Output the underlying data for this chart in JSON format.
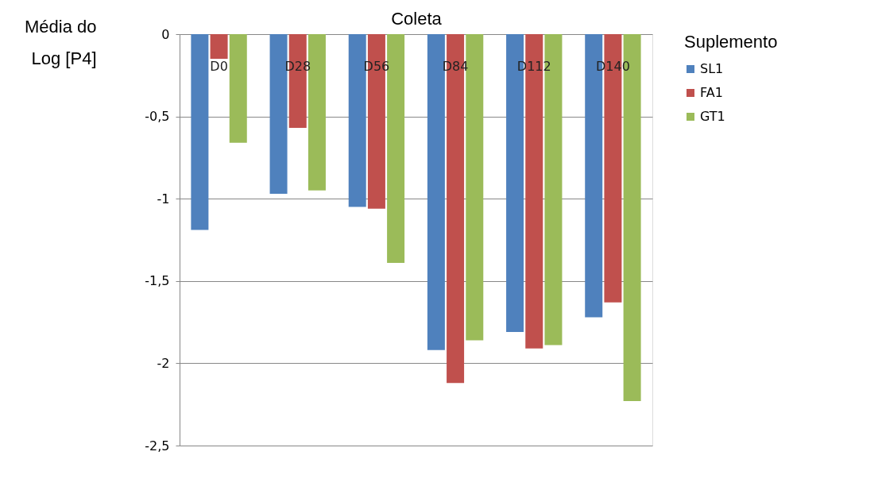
{
  "chart_data": {
    "type": "bar",
    "xlabel": "Coleta",
    "ylabel": "Média do\nLog [P4]",
    "legend_title": "Suplemento",
    "categories": [
      "D0",
      "D28",
      "D56",
      "D84",
      "D112",
      "D140"
    ],
    "series": [
      {
        "name": "SL1",
        "color": "#4f81bd",
        "values": [
          -1.19,
          -0.97,
          -1.05,
          -1.92,
          -1.81,
          -1.72
        ]
      },
      {
        "name": "FA1",
        "color": "#c0504d",
        "values": [
          -0.15,
          -0.57,
          -1.06,
          -2.12,
          -1.91,
          -1.63
        ]
      },
      {
        "name": "GT1",
        "color": "#9bbb59",
        "values": [
          -0.66,
          -0.95,
          -1.39,
          -1.86,
          -1.89,
          -2.23
        ]
      }
    ],
    "ylim": [
      -2.5,
      0
    ],
    "yticks": [
      0,
      {
        "value": -0.5,
        "label": "-0,5"
      },
      -1,
      {
        "value": -1.5,
        "label": "-1,5"
      },
      -2,
      {
        "value": -2.5,
        "label": "-2,5"
      }
    ],
    "grid": "y",
    "legend": "right"
  }
}
